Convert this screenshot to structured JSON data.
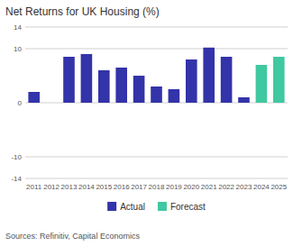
{
  "chart_data": {
    "type": "bar",
    "title": "Net Returns for UK Housing (%)",
    "annotations": [
      "Sources: Refinitiv, Capital Economics"
    ],
    "categories": [
      "2011",
      "2012",
      "2013",
      "2014",
      "2015",
      "2016",
      "2017",
      "2018",
      "2019",
      "2020",
      "2021",
      "2022",
      "2023",
      "2024",
      "2025"
    ],
    "series": [
      {
        "name": "Actual",
        "color": "#3333aa",
        "values": [
          2.0,
          0.0,
          8.5,
          9.0,
          6.0,
          6.5,
          5.0,
          3.0,
          2.5,
          8.0,
          10.2,
          8.5,
          1.0,
          null,
          null
        ]
      },
      {
        "name": "Forecast",
        "color": "#40c8a0",
        "values": [
          null,
          null,
          null,
          null,
          null,
          null,
          null,
          null,
          null,
          null,
          null,
          null,
          null,
          7.0,
          8.5
        ]
      }
    ],
    "stacked": true,
    "ylim": [
      -14,
      14
    ],
    "yticks": [
      -14,
      -10,
      0,
      10,
      14
    ],
    "grid": true,
    "legend": "bottom"
  }
}
